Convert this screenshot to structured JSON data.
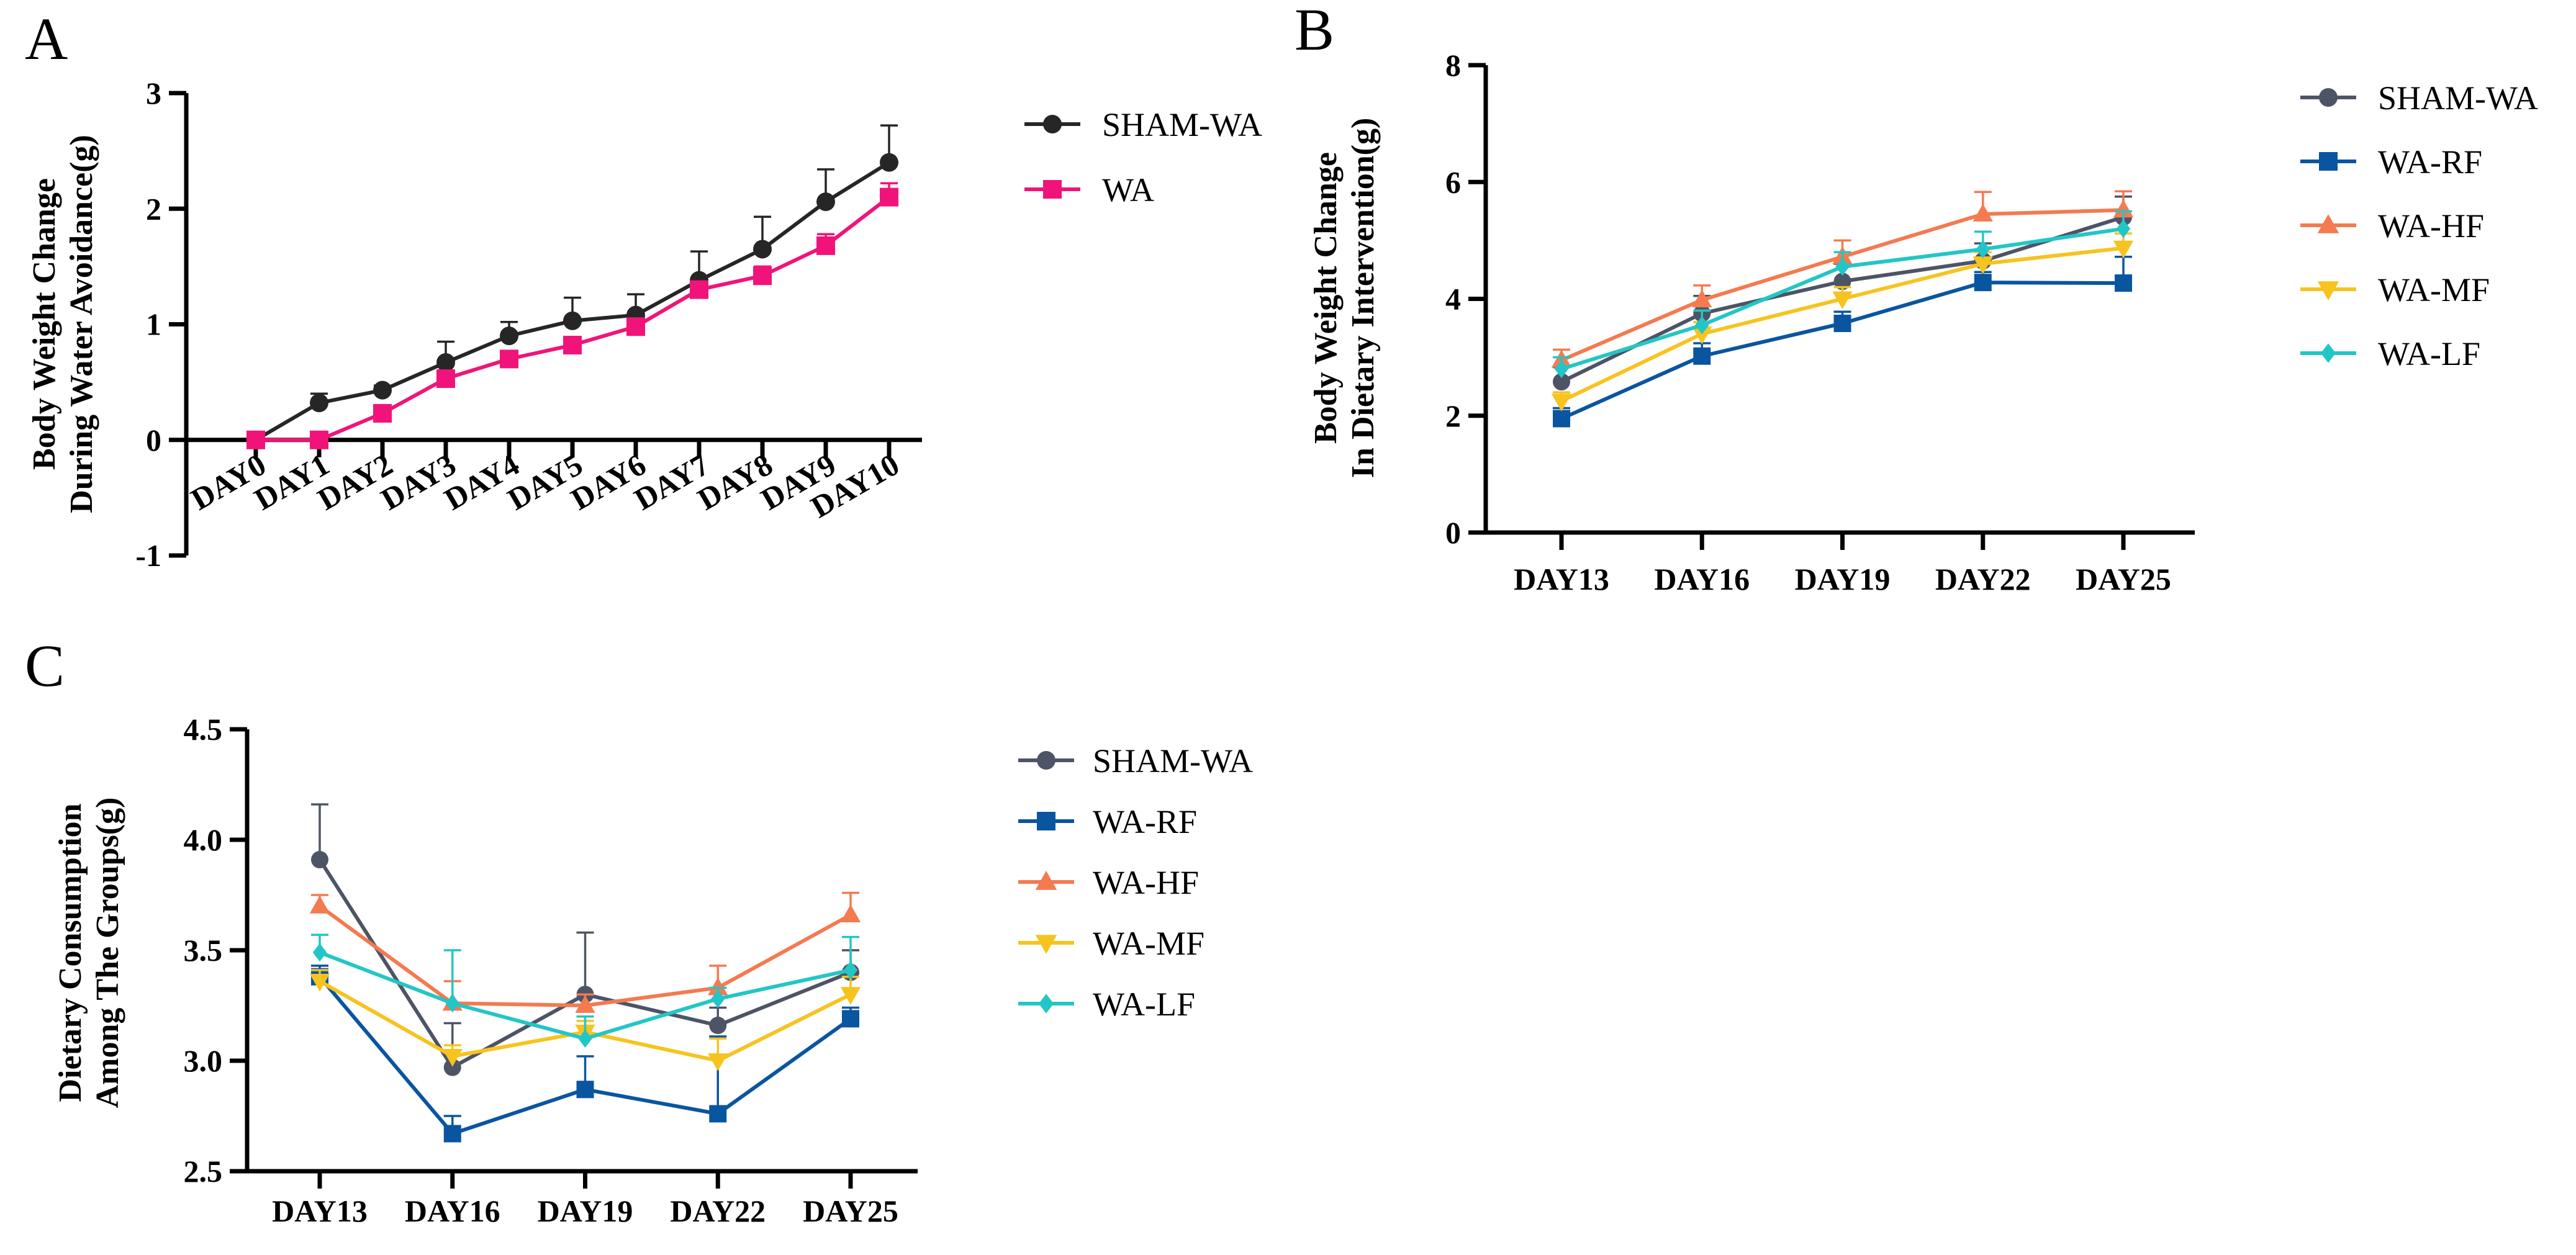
{
  "colors": {
    "sham_a": "#262626",
    "wa_a": "#f0147a",
    "sham": "#4d5466",
    "rf": "#0a55a0",
    "hf": "#f47a50",
    "mf": "#f7c31e",
    "lf": "#23c6c6",
    "axis": "#000000"
  },
  "chart_data": [
    {
      "panel": "A",
      "type": "line",
      "ylabel": [
        "Body Weight Change",
        "During Water Avoidance(g)"
      ],
      "xlabel": "",
      "ylim": [
        -1,
        3
      ],
      "yticks": [
        "-1",
        "0",
        "1",
        "2",
        "3"
      ],
      "categories": [
        "DAY0",
        "DAY1",
        "DAY2",
        "DAY3",
        "DAY4",
        "DAY5",
        "DAY6",
        "DAY7",
        "DAY8",
        "DAY9",
        "DAY10"
      ],
      "series": [
        {
          "name": "SHAM-WA",
          "marker": "circle",
          "color": "#262626",
          "values": [
            0,
            0.32,
            0.43,
            0.67,
            0.9,
            1.03,
            1.08,
            1.38,
            1.65,
            2.06,
            2.4
          ],
          "errors": [
            0,
            0.08,
            0.04,
            0.18,
            0.12,
            0.2,
            0.18,
            0.25,
            0.28,
            0.28,
            0.32
          ]
        },
        {
          "name": "WA",
          "marker": "square",
          "color": "#f0147a",
          "values": [
            0,
            0,
            0.23,
            0.53,
            0.7,
            0.82,
            0.98,
            1.3,
            1.42,
            1.68,
            2.1
          ],
          "errors": [
            0,
            0,
            0.04,
            0.06,
            0.06,
            0.06,
            0.06,
            0.06,
            0.08,
            0.1,
            0.12
          ]
        }
      ]
    },
    {
      "panel": "B",
      "type": "line",
      "ylabel": [
        "Body Weight Change",
        "In Dietary Intervention(g)"
      ],
      "xlabel": "",
      "ylim": [
        0,
        8
      ],
      "yticks": [
        "0",
        "2",
        "4",
        "6",
        "8"
      ],
      "categories": [
        "DAY13",
        "DAY16",
        "DAY19",
        "DAY22",
        "DAY25"
      ],
      "series": [
        {
          "name": "SHAM-WA",
          "marker": "circle",
          "color": "#4d5466",
          "values": [
            2.58,
            3.75,
            4.3,
            4.65,
            5.4
          ],
          "errors": [
            0.25,
            0.3,
            0.3,
            0.3,
            0.35
          ]
        },
        {
          "name": "WA-RF",
          "marker": "square",
          "color": "#0a55a0",
          "values": [
            1.95,
            3.02,
            3.58,
            4.28,
            4.27
          ],
          "errors": [
            0.18,
            0.22,
            0.2,
            0.18,
            0.45
          ]
        },
        {
          "name": "WA-HF",
          "marker": "triangle",
          "color": "#f47a50",
          "values": [
            2.95,
            3.98,
            4.72,
            5.45,
            5.52
          ],
          "errors": [
            0.18,
            0.25,
            0.28,
            0.38,
            0.32
          ]
        },
        {
          "name": "WA-MF",
          "marker": "triangle-down",
          "color": "#f7c31e",
          "values": [
            2.25,
            3.4,
            4.0,
            4.6,
            4.87
          ],
          "errors": [
            0.15,
            0.2,
            0.2,
            0.2,
            0.25
          ]
        },
        {
          "name": "WA-LF",
          "marker": "diamond",
          "color": "#23c6c6",
          "values": [
            2.8,
            3.55,
            4.55,
            4.85,
            5.2
          ],
          "errors": [
            0.2,
            0.25,
            0.25,
            0.3,
            0.3
          ]
        }
      ]
    },
    {
      "panel": "C",
      "type": "line",
      "ylabel": [
        "Dietary Consumption",
        "Among The Groups(g)"
      ],
      "xlabel": "",
      "ylim": [
        2.5,
        4.5
      ],
      "yticks": [
        "2.5",
        "3.0",
        "3.5",
        "4.0",
        "4.5"
      ],
      "categories": [
        "DAY13",
        "DAY16",
        "DAY19",
        "DAY22",
        "DAY25"
      ],
      "series": [
        {
          "name": "SHAM-WA",
          "marker": "circle",
          "color": "#4d5466",
          "values": [
            3.91,
            2.97,
            3.3,
            3.16,
            3.4
          ],
          "errors": [
            0.25,
            0.2,
            0.28,
            0.08,
            0.1
          ]
        },
        {
          "name": "WA-RF",
          "marker": "square",
          "color": "#0a55a0",
          "values": [
            3.38,
            2.67,
            2.87,
            2.76,
            3.19
          ],
          "errors": [
            0.05,
            0.08,
            0.15,
            0.35,
            0.05
          ]
        },
        {
          "name": "WA-HF",
          "marker": "triangle",
          "color": "#f47a50",
          "values": [
            3.7,
            3.26,
            3.25,
            3.33,
            3.66
          ],
          "errors": [
            0.05,
            0.1,
            0.05,
            0.1,
            0.1
          ]
        },
        {
          "name": "WA-MF",
          "marker": "triangle-down",
          "color": "#f7c31e",
          "values": [
            3.36,
            3.02,
            3.13,
            3.0,
            3.3
          ],
          "errors": [
            0.05,
            0.05,
            0.05,
            0.1,
            0.08
          ]
        },
        {
          "name": "WA-LF",
          "marker": "diamond",
          "color": "#23c6c6",
          "values": [
            3.49,
            3.26,
            3.1,
            3.28,
            3.41
          ],
          "errors": [
            0.08,
            0.24,
            0.1,
            0.05,
            0.15
          ]
        }
      ]
    }
  ],
  "panels": {
    "a": {
      "letter": "A"
    },
    "b": {
      "letter": "B"
    },
    "c": {
      "letter": "C"
    }
  }
}
